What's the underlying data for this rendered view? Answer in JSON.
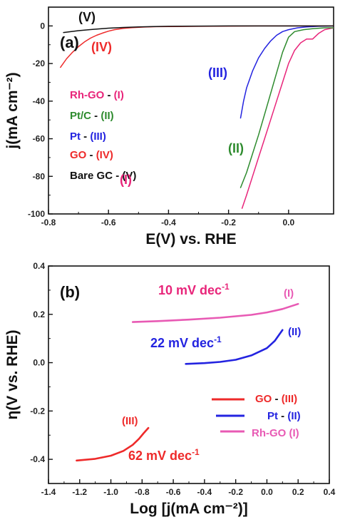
{
  "chart_data": [
    {
      "panel_label": "(a)",
      "type": "line",
      "xlabel": "E(V) vs. RHE",
      "ylabel": "j(mA cm⁻²)",
      "xlim": [
        -0.8,
        0.15
      ],
      "ylim": [
        -100,
        10
      ],
      "xticks": [
        -0.8,
        -0.6,
        -0.4,
        -0.2,
        0.0
      ],
      "xtick_labels": [
        "-0.8",
        "-0.6",
        "-0.4",
        "-0.2",
        "0.0"
      ],
      "yticks": [
        0,
        -20,
        -40,
        -60,
        -80,
        -100
      ],
      "ytick_labels": [
        "0",
        "-20",
        "-40",
        "-60",
        "-80",
        "-100"
      ],
      "legend": [
        {
          "label": "Rh-GO - (I)",
          "color": "#e8257a"
        },
        {
          "label": "Pt/C - (II)",
          "color": "#2e8b2e"
        },
        {
          "label": "Pt  - (III)",
          "color": "#2323e0"
        },
        {
          "label": "GO - (IV)",
          "color": "#ee2a2a"
        },
        {
          "label": "Bare GC - (V)",
          "color": "#111111"
        }
      ],
      "curve_labels": [
        {
          "text": "(I)",
          "color": "#e8257a"
        },
        {
          "text": "(II)",
          "color": "#2e8b2e"
        },
        {
          "text": "(III)",
          "color": "#2323e0"
        },
        {
          "text": "(IV)",
          "color": "#ee2a2a"
        },
        {
          "text": "(V)",
          "color": "#111111"
        }
      ],
      "series": [
        {
          "id": "I",
          "color": "#e8257a",
          "x": [
            -0.155,
            -0.14,
            -0.12,
            -0.1,
            -0.08,
            -0.06,
            -0.04,
            -0.02,
            0.0,
            0.02,
            0.04,
            0.06,
            0.08,
            0.1,
            0.12,
            0.15
          ],
          "y": [
            -97,
            -90,
            -80,
            -70,
            -60,
            -50,
            -40,
            -30,
            -20,
            -13,
            -9,
            -7,
            -7,
            -4,
            -2,
            -1
          ]
        },
        {
          "id": "II",
          "color": "#2e8b2e",
          "x": [
            -0.16,
            -0.14,
            -0.12,
            -0.1,
            -0.08,
            -0.06,
            -0.04,
            -0.02,
            0.0,
            0.02,
            0.05,
            0.08,
            0.12,
            0.15
          ],
          "y": [
            -86,
            -78,
            -68,
            -58,
            -47,
            -36,
            -25,
            -14,
            -6,
            -3,
            -2,
            -1.5,
            -1,
            -1
          ]
        },
        {
          "id": "III",
          "color": "#2323e0",
          "x": [
            -0.16,
            -0.15,
            -0.14,
            -0.12,
            -0.1,
            -0.08,
            -0.06,
            -0.04,
            -0.02,
            0.0,
            0.03,
            0.06,
            0.1,
            0.15
          ],
          "y": [
            -49,
            -40,
            -33,
            -24,
            -17,
            -12,
            -8,
            -5,
            -3,
            -2,
            -1,
            -0.5,
            -0.2,
            0
          ]
        },
        {
          "id": "IV",
          "color": "#ee2a2a",
          "x": [
            -0.76,
            -0.74,
            -0.72,
            -0.7,
            -0.68,
            -0.66,
            -0.64,
            -0.62,
            -0.6,
            -0.58,
            -0.55,
            -0.52,
            -0.48,
            -0.44,
            -0.4,
            -0.3,
            -0.2,
            -0.1,
            0.0,
            0.15
          ],
          "y": [
            -22,
            -17.5,
            -14,
            -11,
            -8.5,
            -6.5,
            -5,
            -3.8,
            -2.8,
            -2,
            -1.3,
            -0.9,
            -0.6,
            -0.4,
            -0.3,
            -0.2,
            -0.1,
            0,
            0,
            0
          ]
        },
        {
          "id": "V",
          "color": "#111111",
          "x": [
            -0.75,
            -0.7,
            -0.65,
            -0.6,
            -0.55,
            -0.5,
            -0.45,
            -0.4,
            -0.3,
            -0.2,
            -0.1,
            0.0,
            0.15
          ],
          "y": [
            -3.5,
            -2.5,
            -1.8,
            -1.2,
            -0.8,
            -0.5,
            -0.3,
            -0.2,
            -0.1,
            0,
            0,
            0,
            0
          ]
        }
      ]
    },
    {
      "panel_label": "(b)",
      "type": "line",
      "xlabel": "Log [j(mA cm⁻²)]",
      "ylabel": "η(V vs. RHE)",
      "xlim": [
        -1.4,
        0.4
      ],
      "ylim": [
        -0.5,
        0.4
      ],
      "xticks": [
        -1.4,
        -1.2,
        -1.0,
        -0.8,
        -0.6,
        -0.4,
        -0.2,
        0.0,
        0.2,
        0.4
      ],
      "xtick_labels": [
        "-1.4",
        "-1.2",
        "-1.0",
        "-0.8",
        "-0.6",
        "-0.4",
        "-0.2",
        "0.0",
        "0.2",
        "0.4"
      ],
      "yticks": [
        0.4,
        0.2,
        0.0,
        -0.2,
        -0.4
      ],
      "ytick_labels": [
        "0.4",
        "0.2",
        "0.0",
        "-0.2",
        "-0.4"
      ],
      "legend": [
        {
          "label": "GO - (III)",
          "color": "#ee2a2a"
        },
        {
          "label": "Pt  - (II)",
          "color": "#2323e0"
        },
        {
          "label": "Rh-GO (I)",
          "color": "#e85ab4"
        }
      ],
      "curve_labels": [
        {
          "text": "(I)",
          "color": "#e85ab4"
        },
        {
          "text": "(II)",
          "color": "#2323e0"
        },
        {
          "text": "(III)",
          "color": "#ee2a2a"
        }
      ],
      "slope_labels": [
        {
          "text": "10 mV dec",
          "sup": "-1",
          "color": "#e8257a"
        },
        {
          "text": "22 mV dec",
          "sup": "-1",
          "color": "#2323e0"
        },
        {
          "text": "62 mV dec",
          "sup": "-1",
          "color": "#ee2a2a"
        }
      ],
      "series": [
        {
          "id": "I",
          "color": "#e85ab4",
          "x": [
            -0.86,
            -0.7,
            -0.5,
            -0.3,
            -0.1,
            0.0,
            0.1,
            0.2
          ],
          "y": [
            0.168,
            0.172,
            0.178,
            0.186,
            0.198,
            0.208,
            0.222,
            0.243
          ]
        },
        {
          "id": "II",
          "color": "#2323e0",
          "x": [
            -0.52,
            -0.4,
            -0.3,
            -0.2,
            -0.1,
            0.0,
            0.05,
            0.1
          ],
          "y": [
            -0.005,
            -0.002,
            0.003,
            0.012,
            0.03,
            0.06,
            0.09,
            0.135
          ]
        },
        {
          "id": "III",
          "color": "#ee2a2a",
          "x": [
            -1.22,
            -1.1,
            -1.0,
            -0.92,
            -0.86,
            -0.82,
            -0.79,
            -0.76
          ],
          "y": [
            -0.405,
            -0.398,
            -0.385,
            -0.365,
            -0.34,
            -0.315,
            -0.292,
            -0.27
          ]
        }
      ]
    }
  ]
}
